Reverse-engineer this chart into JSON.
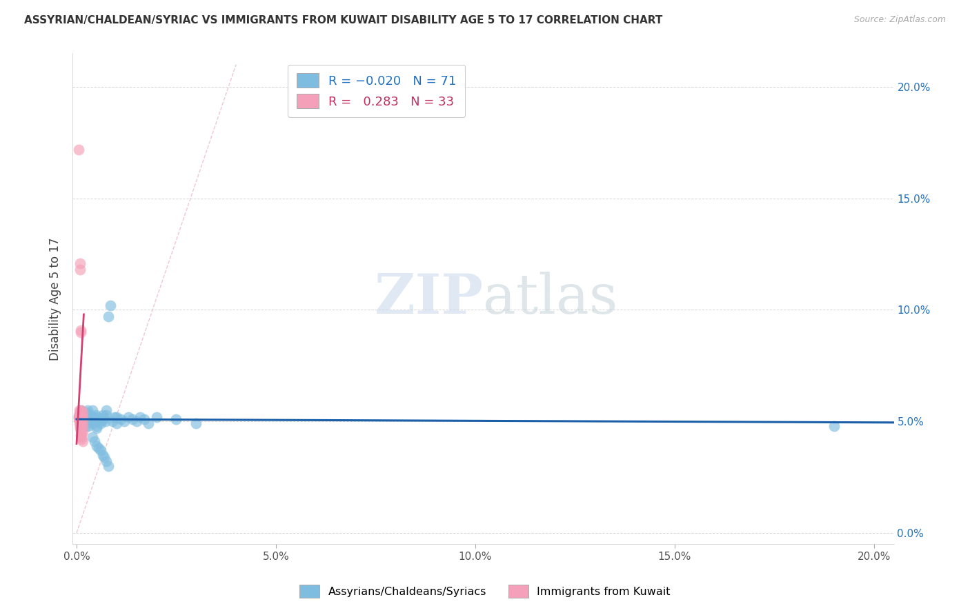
{
  "title": "ASSYRIAN/CHALDEAN/SYRIAC VS IMMIGRANTS FROM KUWAIT DISABILITY AGE 5 TO 17 CORRELATION CHART",
  "source": "Source: ZipAtlas.com",
  "ylabel": "Disability Age 5 to 17",
  "x_ticks": [
    0.0,
    0.05,
    0.1,
    0.15,
    0.2
  ],
  "x_tick_labels": [
    "0.0%",
    "5.0%",
    "10.0%",
    "15.0%",
    "20.0%"
  ],
  "y_ticks": [
    0.0,
    0.05,
    0.1,
    0.15,
    0.2
  ],
  "y_tick_labels_right": [
    "0.0%",
    "5.0%",
    "10.0%",
    "15.0%",
    "20.0%"
  ],
  "xlim": [
    -0.001,
    0.205
  ],
  "ylim": [
    -0.005,
    0.215
  ],
  "legend_blue_label": "Assyrians/Chaldeans/Syriacs",
  "legend_pink_label": "Immigrants from Kuwait",
  "blue_R": -0.02,
  "blue_N": 71,
  "pink_R": 0.283,
  "pink_N": 33,
  "blue_color": "#7fbde0",
  "pink_color": "#f4a0b8",
  "trend_blue_color": "#1a5fa8",
  "trend_pink_color": "#d04070",
  "ref_line_color": "#e8b0c0",
  "watermark_color": "#c8d8ea",
  "background_color": "#ffffff",
  "grid_color": "#cccccc",
  "blue_scatter": [
    [
      0.0005,
      0.052
    ],
    [
      0.0008,
      0.054
    ],
    [
      0.001,
      0.051
    ],
    [
      0.001,
      0.055
    ],
    [
      0.001,
      0.049
    ],
    [
      0.0012,
      0.053
    ],
    [
      0.0012,
      0.05
    ],
    [
      0.0015,
      0.052
    ],
    [
      0.0015,
      0.048
    ],
    [
      0.0018,
      0.051
    ],
    [
      0.0018,
      0.054
    ],
    [
      0.002,
      0.05
    ],
    [
      0.002,
      0.053
    ],
    [
      0.0022,
      0.052
    ],
    [
      0.0022,
      0.049
    ],
    [
      0.0025,
      0.051
    ],
    [
      0.0025,
      0.054
    ],
    [
      0.0025,
      0.048
    ],
    [
      0.0028,
      0.052
    ],
    [
      0.0028,
      0.055
    ],
    [
      0.003,
      0.05
    ],
    [
      0.003,
      0.048
    ],
    [
      0.0032,
      0.052
    ],
    [
      0.0035,
      0.051
    ],
    [
      0.0035,
      0.053
    ],
    [
      0.0038,
      0.05
    ],
    [
      0.004,
      0.052
    ],
    [
      0.004,
      0.055
    ],
    [
      0.0042,
      0.049
    ],
    [
      0.0045,
      0.051
    ],
    [
      0.0048,
      0.053
    ],
    [
      0.005,
      0.05
    ],
    [
      0.005,
      0.048
    ],
    [
      0.005,
      0.047
    ],
    [
      0.0052,
      0.052
    ],
    [
      0.0055,
      0.051
    ],
    [
      0.006,
      0.05
    ],
    [
      0.006,
      0.049
    ],
    [
      0.0065,
      0.053
    ],
    [
      0.0068,
      0.051
    ],
    [
      0.007,
      0.052
    ],
    [
      0.0072,
      0.05
    ],
    [
      0.0075,
      0.055
    ],
    [
      0.0075,
      0.053
    ],
    [
      0.008,
      0.097
    ],
    [
      0.0085,
      0.102
    ],
    [
      0.009,
      0.05
    ],
    [
      0.0095,
      0.052
    ],
    [
      0.01,
      0.052
    ],
    [
      0.01,
      0.049
    ],
    [
      0.011,
      0.051
    ],
    [
      0.012,
      0.05
    ],
    [
      0.013,
      0.052
    ],
    [
      0.014,
      0.051
    ],
    [
      0.015,
      0.05
    ],
    [
      0.016,
      0.052
    ],
    [
      0.017,
      0.051
    ],
    [
      0.018,
      0.049
    ],
    [
      0.02,
      0.052
    ],
    [
      0.025,
      0.051
    ],
    [
      0.03,
      0.049
    ],
    [
      0.004,
      0.043
    ],
    [
      0.0045,
      0.041
    ],
    [
      0.005,
      0.039
    ],
    [
      0.0055,
      0.038
    ],
    [
      0.006,
      0.037
    ],
    [
      0.0065,
      0.035
    ],
    [
      0.007,
      0.034
    ],
    [
      0.0075,
      0.032
    ],
    [
      0.008,
      0.03
    ],
    [
      0.19,
      0.048
    ]
  ],
  "pink_scatter": [
    [
      0.0005,
      0.052
    ],
    [
      0.0005,
      0.051
    ],
    [
      0.0006,
      0.053
    ],
    [
      0.0007,
      0.049
    ],
    [
      0.0007,
      0.055
    ],
    [
      0.0008,
      0.048
    ],
    [
      0.0008,
      0.054
    ],
    [
      0.0008,
      0.052
    ],
    [
      0.0009,
      0.05
    ],
    [
      0.0009,
      0.047
    ],
    [
      0.001,
      0.091
    ],
    [
      0.001,
      0.09
    ],
    [
      0.001,
      0.053
    ],
    [
      0.001,
      0.051
    ],
    [
      0.001,
      0.048
    ],
    [
      0.001,
      0.046
    ],
    [
      0.001,
      0.044
    ],
    [
      0.0012,
      0.042
    ],
    [
      0.0012,
      0.055
    ],
    [
      0.0012,
      0.052
    ],
    [
      0.0012,
      0.05
    ],
    [
      0.0012,
      0.048
    ],
    [
      0.0012,
      0.045
    ],
    [
      0.0012,
      0.043
    ],
    [
      0.0015,
      0.054
    ],
    [
      0.0015,
      0.052
    ],
    [
      0.0015,
      0.05
    ],
    [
      0.0015,
      0.048
    ],
    [
      0.0015,
      0.045
    ],
    [
      0.0015,
      0.041
    ],
    [
      0.0008,
      0.121
    ],
    [
      0.0008,
      0.118
    ],
    [
      0.0006,
      0.172
    ]
  ]
}
